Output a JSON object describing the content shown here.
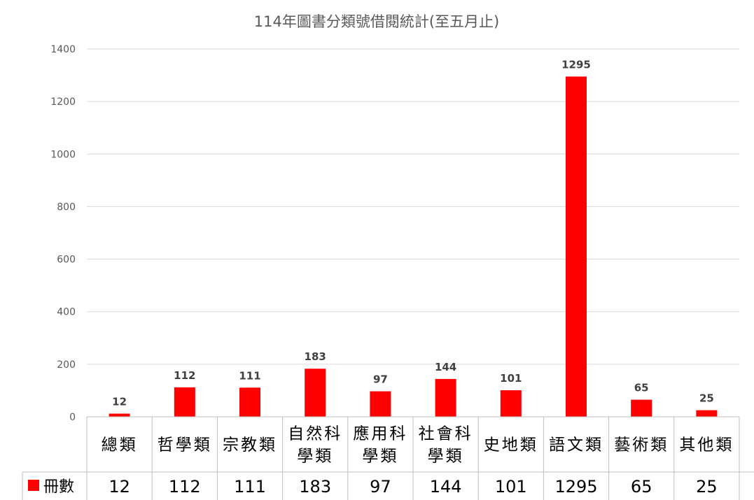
{
  "chart_data": {
    "type": "bar",
    "title": "114年圖書分類號借閱統計(至五月止)",
    "categories": [
      [
        "總類"
      ],
      [
        "哲學類"
      ],
      [
        "宗教類"
      ],
      [
        "自然科",
        "學類"
      ],
      [
        "應用科",
        "學類"
      ],
      [
        "社會科",
        "學類"
      ],
      [
        "史地類"
      ],
      [
        "語文類"
      ],
      [
        "藝術類"
      ],
      [
        "其他類"
      ]
    ],
    "series": [
      {
        "name": "冊數",
        "values": [
          12,
          112,
          111,
          183,
          97,
          144,
          101,
          1295,
          65,
          25
        ],
        "color": "#ff0000"
      }
    ],
    "value_labels": [
      "12",
      "112",
      "111",
      "183",
      "97",
      "144",
      "101",
      "1295",
      "65",
      "25"
    ],
    "ylim": [
      0,
      1400
    ],
    "yticks": [
      "0",
      "200",
      "400",
      "600",
      "800",
      "1000",
      "1200",
      "1400"
    ],
    "grid": true,
    "legend": "data-table-left",
    "data_table": true
  }
}
